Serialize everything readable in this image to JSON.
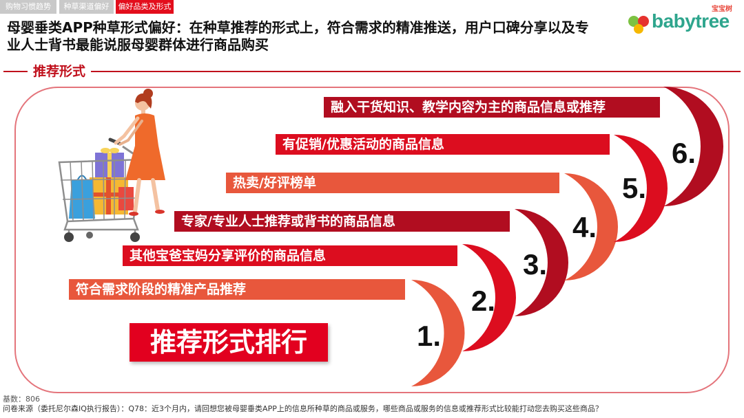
{
  "tabs": [
    {
      "label": "购物习惯趋势",
      "active": false
    },
    {
      "label": "种草渠道偏好",
      "active": false
    },
    {
      "label": "偏好品类及形式",
      "active": true
    }
  ],
  "title_lines": [
    "母婴垂类APP种草形式偏好：在种草推荐的形式上，符合需求的精准推送，用户口碑分享以及专",
    "业人士背书最能说服母婴群体进行商品购买"
  ],
  "logo": {
    "brand": "babytree",
    "brand_cn": "宝宝树",
    "brand_color": "#2ea58d"
  },
  "section_label": "推荐形式",
  "ranking_title": "推荐形式排行",
  "ranking": [
    {
      "rank": "1.",
      "label": "符合需求阶段的精准产品推荐",
      "color": "#e8573c"
    },
    {
      "rank": "2.",
      "label": "其他宝爸宝妈分享评价的商品信息",
      "color": "#dc0d1f"
    },
    {
      "rank": "3.",
      "label": "专家/专业人士推荐或背书的商品信息",
      "color": "#b10d20"
    },
    {
      "rank": "4.",
      "label": "热卖/好评榜单",
      "color": "#e8573c"
    },
    {
      "rank": "5.",
      "label": "有促销/优惠活动的商品信息",
      "color": "#dc0d1f"
    },
    {
      "rank": "6.",
      "label": "融入干货知识、教学内容为主的商品信息或推荐",
      "color": "#b10d20"
    }
  ],
  "footer": {
    "base": "基数：806",
    "source": "问卷来源（委托尼尔森IQ执行报告）：Q78：近3个月内，请回想您被母婴垂类APP上的信息所种草的商品或服务，哪些商品或服务的信息或推荐形式比较能打动您去购买这些商品？"
  },
  "colors": {
    "accent": "#e30d1c",
    "frame": "#e4747b",
    "rank_box": "#e2001f"
  }
}
